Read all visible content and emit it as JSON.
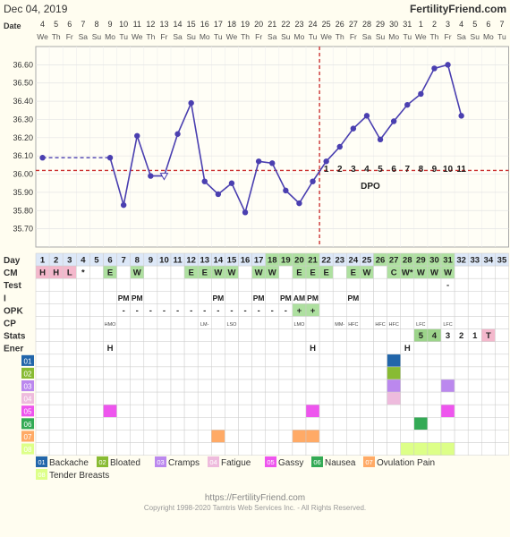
{
  "header": {
    "date_label": "Dec 04, 2019",
    "site": "FertilityFriend.com"
  },
  "chart_data": {
    "type": "line",
    "title": "",
    "xlabel": "Day",
    "ylabel": "",
    "ylim": [
      35.6,
      36.7
    ],
    "y_ticks": [
      "36.60",
      "36.50",
      "36.40",
      "36.30",
      "36.20",
      "36.10",
      "36.00",
      "35.90",
      "35.80",
      "35.70"
    ],
    "row_labels": {
      "date": "Date",
      "day": "Day",
      "cm": "CM",
      "test": "Test",
      "i": "I",
      "opk": "OPK",
      "cp": "CP",
      "stats": "Stats",
      "ener": "Ener"
    },
    "dates": [
      "4",
      "5",
      "6",
      "7",
      "8",
      "9",
      "10",
      "11",
      "12",
      "13",
      "14",
      "15",
      "16",
      "17",
      "18",
      "19",
      "20",
      "21",
      "22",
      "23",
      "24",
      "25",
      "26",
      "27",
      "28",
      "29",
      "30",
      "31",
      "1",
      "2",
      "3",
      "4",
      "5",
      "6",
      "7"
    ],
    "weekdays": [
      "We",
      "Th",
      "Fr",
      "Sa",
      "Su",
      "Mo",
      "Tu",
      "We",
      "Th",
      "Fr",
      "Sa",
      "Su",
      "Mo",
      "Tu",
      "We",
      "Th",
      "Fr",
      "Sa",
      "Su",
      "Mo",
      "Tu",
      "We",
      "Th",
      "Fr",
      "Sa",
      "Su",
      "Mo",
      "Tu",
      "We",
      "Th",
      "Fr",
      "Sa",
      "Su",
      "Mo",
      "Tu"
    ],
    "days": [
      "1",
      "2",
      "3",
      "4",
      "5",
      "6",
      "7",
      "8",
      "9",
      "10",
      "11",
      "12",
      "13",
      "14",
      "15",
      "16",
      "17",
      "18",
      "19",
      "20",
      "21",
      "22",
      "23",
      "24",
      "25",
      "26",
      "27",
      "28",
      "29",
      "30",
      "31",
      "32",
      "33",
      "34",
      "35"
    ],
    "temps": [
      36.09,
      null,
      null,
      null,
      null,
      36.09,
      35.83,
      36.21,
      35.99,
      35.99,
      36.22,
      36.39,
      35.96,
      35.89,
      35.95,
      35.79,
      36.07,
      36.06,
      35.91,
      35.84,
      35.96,
      36.07,
      36.15,
      36.25,
      36.32,
      36.19,
      36.29,
      36.38,
      36.44,
      36.58,
      36.6,
      36.32,
      null,
      null,
      null
    ],
    "discarded_day": 10,
    "coverline": 36.02,
    "ovulation_day": 21,
    "dpo_numbers": [
      "1",
      "2",
      "3",
      "4",
      "5",
      "6",
      "7",
      "8",
      "9",
      "10",
      "11"
    ],
    "dpo_label": "DPO",
    "cm": [
      "H",
      "H",
      "L",
      "*",
      "",
      "E",
      "",
      "W",
      "",
      "",
      "",
      "E",
      "E",
      "W",
      "W",
      "",
      "W",
      "W",
      "",
      "E",
      "E",
      "E",
      "",
      "E",
      "W",
      "",
      "C",
      "W*",
      "W",
      "W",
      "W",
      "",
      "",
      "",
      ""
    ],
    "test": [
      "",
      "",
      "",
      "",
      "",
      "",
      "",
      "",
      "",
      "",
      "",
      "",
      "",
      "",
      "",
      "",
      "",
      "",
      "",
      "",
      "",
      "",
      "",
      "",
      "",
      "",
      "",
      "",
      "",
      "",
      "-",
      "",
      "",
      "",
      ""
    ],
    "intercourse": [
      "",
      "",
      "",
      "",
      "",
      "",
      "PM",
      "PM",
      "",
      "",
      "",
      "",
      "",
      "PM",
      "",
      "",
      "PM",
      "",
      "PM",
      "AM",
      "PM",
      "",
      "",
      "PM",
      "",
      "",
      "",
      "",
      "",
      "",
      "",
      "",
      "",
      "",
      ""
    ],
    "opk": [
      "",
      "",
      "",
      "",
      "",
      "",
      "-",
      "-",
      "-",
      "-",
      "-",
      "-",
      "-",
      "-",
      "-",
      "-",
      "-",
      "-",
      "-",
      "+",
      "+",
      "",
      "",
      "",
      "",
      "",
      "",
      "",
      "",
      "",
      "",
      "",
      "",
      "",
      ""
    ],
    "cp": [
      "",
      "",
      "",
      "",
      "",
      "HMO",
      "",
      "",
      "",
      "",
      "",
      "",
      "LM-",
      "",
      "LSO",
      "",
      "",
      "",
      "",
      "LMO",
      "",
      "",
      "MM-",
      "HFC",
      "",
      "HFC",
      "HFC",
      "",
      "LFC",
      "",
      "LFC",
      "",
      "",
      "",
      ""
    ],
    "stats": [
      "",
      "",
      "",
      "",
      "",
      "",
      "",
      "",
      "",
      "",
      "",
      "",
      "",
      "",
      "",
      "",
      "",
      "",
      "",
      "",
      "",
      "",
      "",
      "",
      "",
      "",
      "",
      "",
      "5",
      "4",
      "3",
      "2",
      "1",
      "T",
      ""
    ],
    "energy": [
      "",
      "",
      "",
      "",
      "",
      "H",
      "",
      "",
      "",
      "",
      "",
      "",
      "",
      "",
      "",
      "",
      "",
      "",
      "",
      "",
      "H",
      "",
      "",
      "",
      "",
      "",
      "",
      "H",
      "",
      "",
      "",
      "",
      "",
      "",
      ""
    ],
    "symptom_rows": [
      "01",
      "02",
      "03",
      "04",
      "05",
      "06",
      "07",
      "08"
    ],
    "legend": [
      "Backache",
      "Bloated",
      "Cramps",
      "Fatigue",
      "Gassy",
      "Nausea",
      "Ovulation Pain",
      "Tender Breasts"
    ],
    "symptom_colors": [
      "#2266aa",
      "#88bb33",
      "#bb88ee",
      "#eebbdd",
      "#ee55ee",
      "#33aa55",
      "#ffaa66",
      "#ddff88"
    ],
    "symptom_marks": [
      {
        "row": 1,
        "days": [
          27
        ]
      },
      {
        "row": 2,
        "days": [
          27
        ]
      },
      {
        "row": 3,
        "days": [
          27,
          31
        ]
      },
      {
        "row": 4,
        "days": [
          27
        ]
      },
      {
        "row": 5,
        "days": [
          6,
          21,
          31
        ]
      },
      {
        "row": 6,
        "days": [
          29
        ]
      },
      {
        "row": 7,
        "days": [
          14,
          20,
          21
        ]
      },
      {
        "row": 8,
        "days": [
          28,
          29,
          30,
          31
        ]
      }
    ],
    "colors": {
      "line": "#4a3fb0",
      "coverline": "#cc3333",
      "ov_line": "#cc3333",
      "day_cell": "#dde8f8",
      "green_cell": "#aee0a0",
      "pink_cell": "#f4b8cc",
      "stat_cell": "#9cd48a",
      "stat_t": "#f4b8cc"
    }
  },
  "footer": {
    "url": "https://FertilityFriend.com",
    "copyright": "Copyright 1998-2020 Tamtris Web Services Inc. - All Rights Reserved."
  }
}
